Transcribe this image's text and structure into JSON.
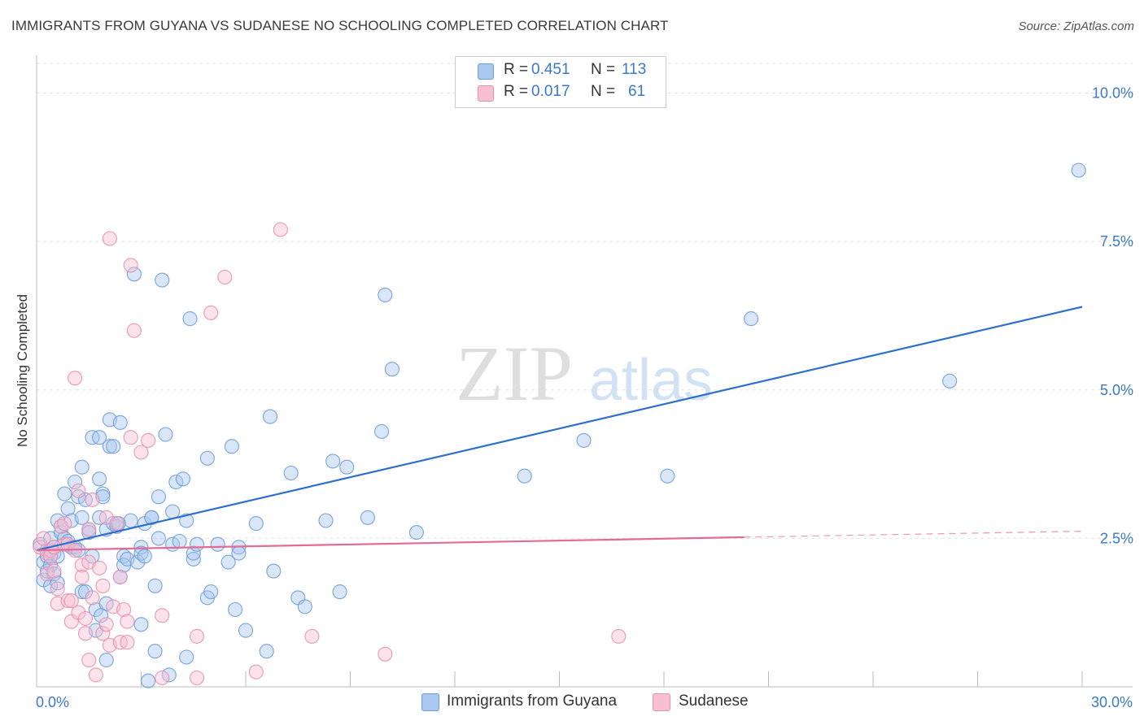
{
  "title": "IMMIGRANTS FROM GUYANA VS SUDANESE NO SCHOOLING COMPLETED CORRELATION CHART",
  "source": "Source: ZipAtlas.com",
  "watermark": {
    "zip": "ZIP",
    "atlas": "atlas"
  },
  "legend": {
    "rows": [
      {
        "r_label": "R =",
        "r_value": "0.451",
        "n_label": "N =",
        "n_value": "113",
        "color": "#a9c8ef",
        "stroke": "#6b9bd8"
      },
      {
        "r_label": "R =",
        "r_value": "0.017",
        "n_label": "N =",
        "n_value": "61",
        "color": "#f6bfd2",
        "stroke": "#e68fae"
      }
    ]
  },
  "bottom_legend": [
    {
      "label": "Immigrants from Guyana",
      "color": "#a9c8ef",
      "stroke": "#6b9bd8"
    },
    {
      "label": "Sudanese",
      "color": "#f6bfd2",
      "stroke": "#e68fae"
    }
  ],
  "chart_data": {
    "type": "scatter",
    "title": "IMMIGRANTS FROM GUYANA VS SUDANESE NO SCHOOLING COMPLETED CORRELATION CHART",
    "xlabel": "",
    "ylabel": "No Schooling Completed",
    "xlim": [
      0,
      30
    ],
    "ylim": [
      0,
      10.5
    ],
    "x_tick_labels": [
      {
        "value": 0,
        "label": "0.0%"
      },
      {
        "value": 30,
        "label": "30.0%"
      }
    ],
    "y_tick_labels": [
      {
        "value": 2.5,
        "label": "2.5%"
      },
      {
        "value": 5.0,
        "label": "5.0%"
      },
      {
        "value": 7.5,
        "label": "7.5%"
      },
      {
        "value": 10.0,
        "label": "10.0%"
      }
    ],
    "x_minor_ticks": [
      3,
      6,
      9,
      12,
      15,
      18,
      21,
      24,
      27,
      30
    ],
    "series": [
      {
        "name": "Immigrants from Guyana",
        "color": "#6b9bd8",
        "fill": "#a9c8ef",
        "trend": {
          "x0": 0.0,
          "y0": 2.3,
          "x1": 30.0,
          "y1": 6.4,
          "color": "#2f6fcc"
        },
        "points": [
          [
            0.1,
            2.4
          ],
          [
            0.2,
            2.1
          ],
          [
            0.2,
            1.8
          ],
          [
            0.3,
            2.2
          ],
          [
            0.3,
            1.95
          ],
          [
            0.3,
            2.3
          ],
          [
            0.4,
            2.05
          ],
          [
            0.4,
            2.5
          ],
          [
            0.4,
            1.7
          ],
          [
            0.5,
            1.9
          ],
          [
            0.5,
            2.35
          ],
          [
            0.5,
            2.25
          ],
          [
            0.6,
            2.8
          ],
          [
            0.6,
            2.2
          ],
          [
            0.6,
            1.75
          ],
          [
            0.7,
            2.6
          ],
          [
            0.7,
            2.7
          ],
          [
            0.8,
            3.25
          ],
          [
            0.8,
            2.5
          ],
          [
            0.9,
            2.45
          ],
          [
            0.9,
            3.0
          ],
          [
            1.0,
            2.35
          ],
          [
            1.0,
            2.8
          ],
          [
            1.1,
            3.45
          ],
          [
            1.1,
            2.35
          ],
          [
            1.2,
            3.2
          ],
          [
            1.2,
            2.3
          ],
          [
            1.3,
            2.85
          ],
          [
            1.3,
            3.7
          ],
          [
            1.3,
            1.6
          ],
          [
            1.4,
            1.6
          ],
          [
            1.4,
            3.15
          ],
          [
            1.5,
            2.65
          ],
          [
            1.5,
            2.6
          ],
          [
            1.6,
            2.2
          ],
          [
            1.6,
            4.2
          ],
          [
            1.7,
            1.3
          ],
          [
            1.7,
            0.95
          ],
          [
            1.8,
            3.5
          ],
          [
            1.8,
            4.2
          ],
          [
            1.8,
            2.85
          ],
          [
            1.9,
            3.25
          ],
          [
            1.9,
            3.2
          ],
          [
            2.0,
            1.4
          ],
          [
            2.0,
            0.45
          ],
          [
            2.0,
            2.65
          ],
          [
            2.1,
            4.05
          ],
          [
            2.1,
            4.5
          ],
          [
            2.2,
            2.75
          ],
          [
            2.2,
            4.05
          ],
          [
            2.3,
            2.7
          ],
          [
            2.4,
            1.85
          ],
          [
            2.4,
            4.45
          ],
          [
            2.5,
            2.2
          ],
          [
            2.5,
            2.05
          ],
          [
            2.6,
            2.15
          ],
          [
            2.7,
            2.8
          ],
          [
            2.8,
            6.95
          ],
          [
            2.9,
            2.1
          ],
          [
            3.0,
            2.35
          ],
          [
            3.0,
            1.05
          ],
          [
            3.0,
            2.25
          ],
          [
            3.1,
            2.75
          ],
          [
            3.1,
            2.2
          ],
          [
            3.2,
            0.1
          ],
          [
            3.3,
            2.85
          ],
          [
            3.4,
            0.6
          ],
          [
            3.4,
            1.7
          ],
          [
            3.5,
            2.5
          ],
          [
            3.5,
            3.2
          ],
          [
            3.6,
            6.85
          ],
          [
            3.7,
            4.25
          ],
          [
            3.8,
            0.2
          ],
          [
            3.9,
            2.4
          ],
          [
            3.9,
            2.95
          ],
          [
            4.0,
            3.45
          ],
          [
            4.1,
            2.45
          ],
          [
            4.2,
            3.5
          ],
          [
            4.3,
            2.8
          ],
          [
            4.3,
            0.5
          ],
          [
            4.4,
            6.2
          ],
          [
            4.5,
            2.15
          ],
          [
            4.5,
            2.25
          ],
          [
            4.6,
            2.4
          ],
          [
            4.9,
            1.5
          ],
          [
            4.9,
            3.85
          ],
          [
            5.0,
            1.6
          ],
          [
            5.2,
            2.4
          ],
          [
            5.5,
            2.1
          ],
          [
            5.6,
            4.05
          ],
          [
            5.7,
            1.3
          ],
          [
            5.8,
            2.35
          ],
          [
            5.8,
            2.25
          ],
          [
            6.3,
            2.75
          ],
          [
            6.6,
            0.6
          ],
          [
            6.7,
            4.55
          ],
          [
            6.8,
            1.95
          ],
          [
            7.3,
            3.6
          ],
          [
            7.5,
            1.5
          ],
          [
            7.7,
            1.35
          ],
          [
            8.3,
            2.8
          ],
          [
            8.5,
            3.8
          ],
          [
            8.7,
            1.6
          ],
          [
            8.9,
            3.7
          ],
          [
            9.5,
            2.85
          ],
          [
            9.9,
            4.3
          ],
          [
            10.0,
            6.6
          ],
          [
            10.2,
            5.35
          ],
          [
            10.9,
            2.6
          ],
          [
            14.0,
            3.55
          ],
          [
            15.7,
            4.15
          ],
          [
            18.1,
            3.55
          ],
          [
            20.5,
            6.2
          ],
          [
            26.2,
            5.15
          ],
          [
            29.9,
            8.7
          ],
          [
            6.0,
            0.95
          ],
          [
            3.3,
            2.85
          ],
          [
            2.35,
            2.75
          ],
          [
            1.85,
            1.2
          ]
        ]
      },
      {
        "name": "Sudanese",
        "color": "#e68fae",
        "fill": "#f6bfd2",
        "trend": {
          "x0": 0.0,
          "y0": 2.3,
          "x1": 20.3,
          "y1": 2.52,
          "dash_x1": 30.0,
          "dash_y1": 2.62,
          "color": "#e46b96"
        },
        "points": [
          [
            0.1,
            2.35
          ],
          [
            0.2,
            2.5
          ],
          [
            0.3,
            2.25
          ],
          [
            0.3,
            1.9
          ],
          [
            0.4,
            2.3
          ],
          [
            0.4,
            2.2
          ],
          [
            0.5,
            1.95
          ],
          [
            0.5,
            2.35
          ],
          [
            0.6,
            1.65
          ],
          [
            0.6,
            1.4
          ],
          [
            0.7,
            2.7
          ],
          [
            0.8,
            2.75
          ],
          [
            0.8,
            2.4
          ],
          [
            0.9,
            1.45
          ],
          [
            0.9,
            2.4
          ],
          [
            1.0,
            1.1
          ],
          [
            1.0,
            1.45
          ],
          [
            1.1,
            5.2
          ],
          [
            1.1,
            2.3
          ],
          [
            1.2,
            1.25
          ],
          [
            1.2,
            3.3
          ],
          [
            1.3,
            2.05
          ],
          [
            1.3,
            1.85
          ],
          [
            1.4,
            0.9
          ],
          [
            1.4,
            1.15
          ],
          [
            1.5,
            2.65
          ],
          [
            1.5,
            2.1
          ],
          [
            1.5,
            0.45
          ],
          [
            1.6,
            3.15
          ],
          [
            1.6,
            1.5
          ],
          [
            1.7,
            0.2
          ],
          [
            1.8,
            2.0
          ],
          [
            1.9,
            1.7
          ],
          [
            1.9,
            0.9
          ],
          [
            2.0,
            2.85
          ],
          [
            2.0,
            1.05
          ],
          [
            2.1,
            0.7
          ],
          [
            2.1,
            7.55
          ],
          [
            2.2,
            1.35
          ],
          [
            2.3,
            2.75
          ],
          [
            2.4,
            1.85
          ],
          [
            2.4,
            0.75
          ],
          [
            2.5,
            1.3
          ],
          [
            2.6,
            1.1
          ],
          [
            2.6,
            0.75
          ],
          [
            2.7,
            7.1
          ],
          [
            2.7,
            4.2
          ],
          [
            2.8,
            6.0
          ],
          [
            3.0,
            3.95
          ],
          [
            3.2,
            4.15
          ],
          [
            3.6,
            0.15
          ],
          [
            3.6,
            1.2
          ],
          [
            4.6,
            0.15
          ],
          [
            4.6,
            0.85
          ],
          [
            5.0,
            6.3
          ],
          [
            5.4,
            6.9
          ],
          [
            6.3,
            0.25
          ],
          [
            7.0,
            7.7
          ],
          [
            7.9,
            0.85
          ],
          [
            10.0,
            0.55
          ],
          [
            16.7,
            0.85
          ]
        ]
      }
    ]
  }
}
